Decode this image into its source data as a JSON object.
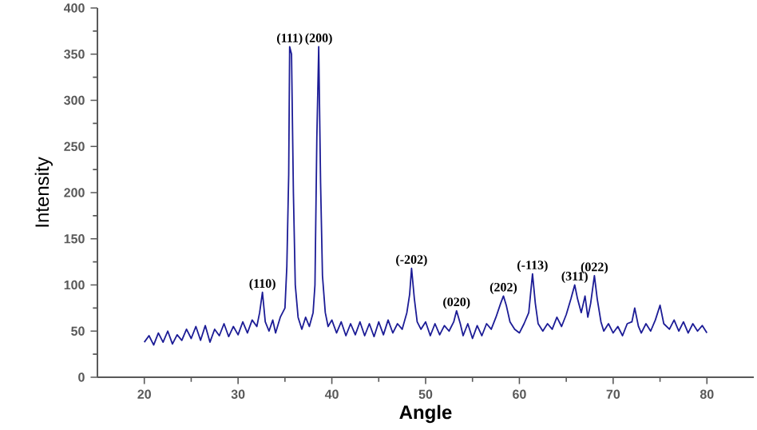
{
  "chart_data": {
    "type": "line",
    "xlabel": "Angle",
    "ylabel": "Intensity",
    "xlim": [
      15,
      85
    ],
    "ylim": [
      0,
      400
    ],
    "xticks": [
      20,
      30,
      40,
      50,
      60,
      70,
      80
    ],
    "yticks": [
      0,
      50,
      100,
      150,
      200,
      250,
      300,
      350,
      400
    ],
    "grid": false,
    "marker": "none",
    "line_style": "solid",
    "series": [
      {
        "color": "#1c1c96",
        "x": [
          20,
          20.5,
          21,
          21.5,
          22,
          22.5,
          23,
          23.5,
          24,
          24.5,
          25,
          25.5,
          26,
          26.5,
          27,
          27.5,
          28,
          28.5,
          29,
          29.5,
          30,
          30.5,
          31,
          31.5,
          32,
          32.3,
          32.6,
          32.9,
          33.3,
          33.7,
          34,
          34.5,
          35,
          35.2,
          35.4,
          35.5,
          35.7,
          35.9,
          36.1,
          36.4,
          36.8,
          37.2,
          37.6,
          38,
          38.2,
          38.4,
          38.6,
          38.8,
          39,
          39.3,
          39.6,
          40,
          40.5,
          41,
          41.5,
          42,
          42.5,
          43,
          43.5,
          44,
          44.5,
          45,
          45.5,
          46,
          46.5,
          47,
          47.5,
          48,
          48.3,
          48.5,
          48.8,
          49.1,
          49.5,
          50,
          50.5,
          51,
          51.5,
          52,
          52.5,
          53,
          53.3,
          53.7,
          54,
          54.5,
          55,
          55.5,
          56,
          56.5,
          57,
          57.5,
          58,
          58.3,
          58.6,
          59,
          59.5,
          60,
          60.5,
          61,
          61.4,
          61.7,
          62,
          62.5,
          63,
          63.5,
          64,
          64.5,
          65,
          65.5,
          65.9,
          66.2,
          66.6,
          67,
          67.3,
          67.6,
          68,
          68.3,
          68.7,
          69,
          69.5,
          70,
          70.5,
          71,
          71.5,
          72,
          72.3,
          72.7,
          73,
          73.5,
          74,
          74.5,
          75,
          75.4,
          76,
          76.5,
          77,
          77.5,
          78,
          78.5,
          79,
          79.5,
          80
        ],
        "values": [
          38,
          45,
          35,
          48,
          38,
          50,
          36,
          46,
          40,
          52,
          42,
          55,
          40,
          56,
          38,
          52,
          45,
          58,
          44,
          55,
          46,
          60,
          48,
          62,
          55,
          70,
          92,
          60,
          50,
          62,
          48,
          65,
          75,
          120,
          220,
          358,
          350,
          200,
          100,
          65,
          52,
          65,
          55,
          70,
          100,
          260,
          358,
          210,
          110,
          70,
          55,
          62,
          48,
          60,
          45,
          58,
          46,
          60,
          45,
          58,
          44,
          60,
          46,
          62,
          48,
          58,
          52,
          70,
          90,
          118,
          85,
          60,
          52,
          60,
          45,
          58,
          46,
          56,
          50,
          60,
          72,
          58,
          45,
          58,
          42,
          56,
          45,
          58,
          52,
          65,
          80,
          88,
          78,
          60,
          52,
          48,
          58,
          70,
          112,
          80,
          58,
          50,
          58,
          52,
          65,
          55,
          68,
          85,
          100,
          85,
          70,
          88,
          65,
          80,
          110,
          85,
          60,
          50,
          58,
          48,
          55,
          45,
          58,
          60,
          75,
          55,
          48,
          58,
          50,
          62,
          78,
          58,
          52,
          62,
          50,
          60,
          48,
          58,
          50,
          56,
          48
        ]
      }
    ],
    "annotations": [
      {
        "text": "(110)",
        "x": 32.6,
        "y": 92
      },
      {
        "text": "(111)",
        "x": 35.5,
        "y": 358
      },
      {
        "text": "(200)",
        "x": 38.6,
        "y": 358
      },
      {
        "text": "(-202)",
        "x": 48.5,
        "y": 118
      },
      {
        "text": "(020)",
        "x": 53.3,
        "y": 72
      },
      {
        "text": "(202)",
        "x": 58.3,
        "y": 88
      },
      {
        "text": "(-113)",
        "x": 61.4,
        "y": 112
      },
      {
        "text": "(311)",
        "x": 65.9,
        "y": 100
      },
      {
        "text": "(022)",
        "x": 68,
        "y": 110
      }
    ]
  }
}
